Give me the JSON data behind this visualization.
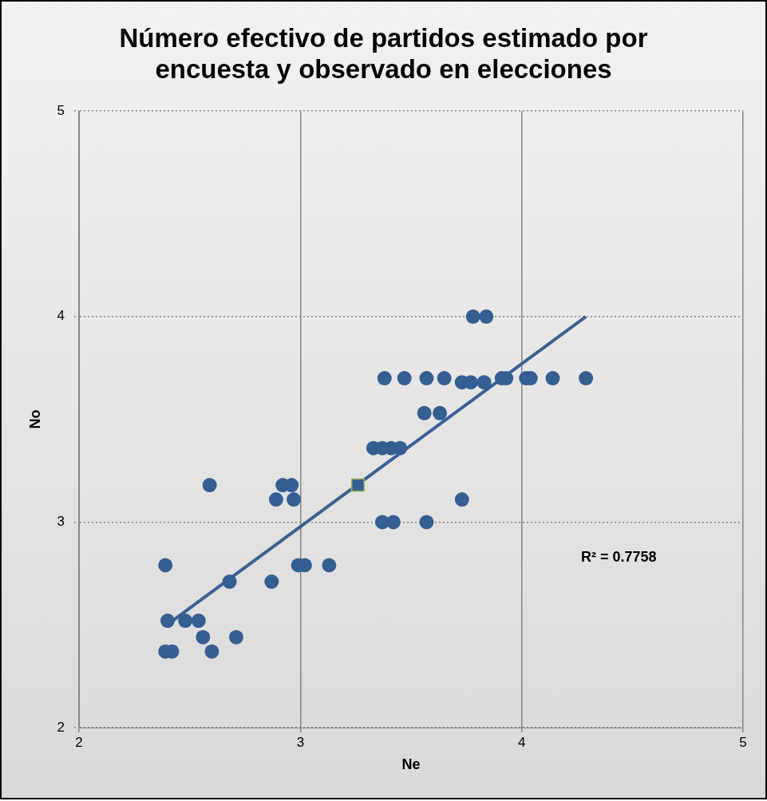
{
  "chart_data": {
    "type": "scatter",
    "title": "Número efectivo de partidos estimado por encuesta y observado en elecciones",
    "xlabel": "Ne",
    "ylabel": "No",
    "xlim": [
      2,
      5
    ],
    "ylim": [
      2,
      5
    ],
    "xticks": [
      2,
      3,
      4,
      5
    ],
    "yticks": [
      2,
      3,
      4,
      5
    ],
    "grid": true,
    "legend": false,
    "marker": "circle",
    "annotations": [
      "R² = 0.7758"
    ],
    "series": [
      {
        "color": "#355f93",
        "x": [
          3.78,
          3.84,
          3.38,
          3.47,
          3.57,
          3.65,
          3.73,
          3.77,
          3.83,
          3.91,
          3.93,
          4.02,
          4.04,
          4.14,
          4.29,
          3.56,
          3.63,
          3.33,
          3.37,
          3.41,
          3.45,
          2.59,
          2.92,
          2.96,
          2.89,
          2.97,
          3.73,
          3.37,
          3.42,
          3.57,
          2.39,
          2.99,
          3.02,
          3.13,
          2.68,
          2.87,
          2.4,
          2.48,
          2.54,
          2.56,
          2.71,
          2.39,
          2.42,
          2.6
        ],
        "values": [
          4.0,
          4.0,
          3.7,
          3.7,
          3.7,
          3.7,
          3.68,
          3.68,
          3.68,
          3.7,
          3.7,
          3.7,
          3.7,
          3.7,
          3.7,
          3.53,
          3.53,
          3.36,
          3.36,
          3.36,
          3.36,
          3.18,
          3.18,
          3.18,
          3.11,
          3.11,
          3.11,
          3.0,
          3.0,
          3.0,
          2.79,
          2.79,
          2.79,
          2.79,
          2.71,
          2.71,
          2.52,
          2.52,
          2.52,
          2.44,
          2.44,
          2.37,
          2.37,
          2.37
        ]
      },
      {
        "color": "#355f93",
        "marker": "square",
        "x": [
          3.26
        ],
        "values": [
          3.18
        ]
      },
      {
        "type": "line",
        "color": "#3a6195",
        "marker": "none",
        "x": [
          2.41,
          4.29
        ],
        "values": [
          2.51,
          4.0
        ]
      }
    ]
  }
}
